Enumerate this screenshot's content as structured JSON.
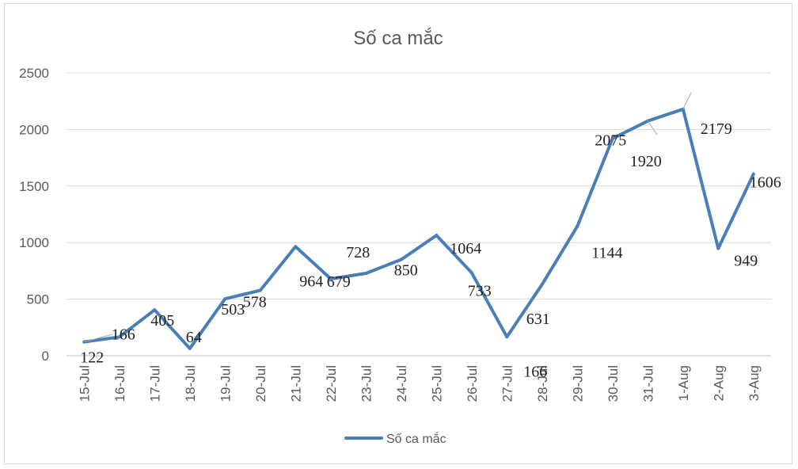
{
  "chart_data": {
    "type": "line",
    "title": "Số ca mắc",
    "categories": [
      "15-Jul",
      "16-Jul",
      "17-Jul",
      "18-Jul",
      "19-Jul",
      "20-Jul",
      "21-Jul",
      "22-Jul",
      "23-Jul",
      "24-Jul",
      "25-Jul",
      "26-Jul",
      "27-Jul",
      "28-Jul",
      "29-Jul",
      "30-Jul",
      "31-Jul",
      "1-Aug",
      "2-Aug",
      "3-Aug"
    ],
    "series": [
      {
        "name": "Số ca mắc",
        "values": [
          122,
          166,
          405,
          64,
          503,
          578,
          964,
          679,
          728,
          850,
          1064,
          733,
          166,
          631,
          1144,
          1920,
          2075,
          2179,
          949,
          1606
        ],
        "color": "#4a7ebb"
      }
    ],
    "yticks": [
      "0",
      "500",
      "1000",
      "1500",
      "2000",
      "2500"
    ],
    "ylim": [
      0,
      2500
    ],
    "grid": true,
    "legend_position": "bottom",
    "xlabel": "",
    "ylabel": ""
  }
}
